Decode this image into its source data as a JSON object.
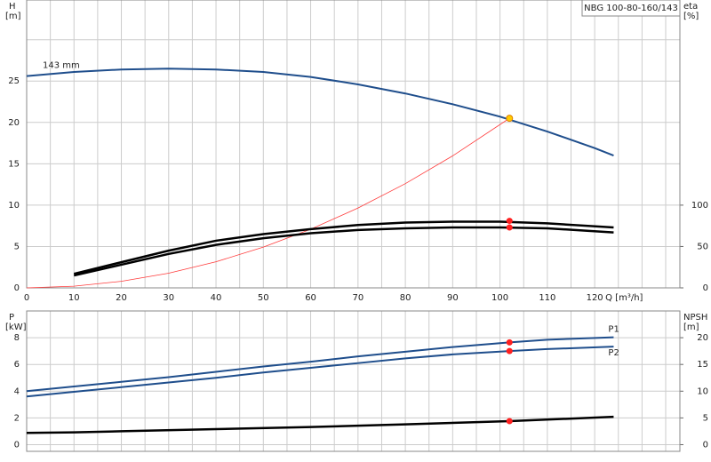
{
  "chart_data": [
    {
      "type": "line",
      "title": "NBG 100-80-160/143",
      "ylabel": "H",
      "yunit": "[m]",
      "y2label": "eta",
      "y2unit": "[%]",
      "xlabel": "Q [m³/h]",
      "xlim": [
        0,
        138
      ],
      "xticks": [
        0,
        10,
        20,
        30,
        40,
        50,
        60,
        70,
        80,
        90,
        100,
        110,
        120
      ],
      "xgrid": [
        5,
        15,
        25,
        35,
        45,
        55,
        65,
        75,
        85,
        95,
        105,
        115,
        125,
        130,
        135
      ],
      "ylim": [
        0,
        34.8
      ],
      "yticks": [
        0,
        5,
        10,
        15,
        20,
        25
      ],
      "ygrid": [
        30
      ],
      "y2lim": [
        0,
        348
      ],
      "y2ticks": [
        0,
        50,
        100
      ],
      "grid": true,
      "series": [
        {
          "name": "143 mm",
          "color": "#1f4e8c",
          "axis": "y",
          "x": [
            0,
            10,
            20,
            30,
            40,
            50,
            60,
            70,
            80,
            90,
            100,
            110,
            120,
            124
          ],
          "values": [
            25.6,
            26.1,
            26.4,
            26.5,
            26.4,
            26.1,
            25.5,
            24.6,
            23.5,
            22.2,
            20.7,
            18.9,
            16.9,
            16.0
          ]
        },
        {
          "color": "#ff3b3b",
          "axis": "y",
          "x": [
            0,
            10,
            20,
            30,
            40,
            50,
            60,
            70,
            80,
            90,
            102
          ],
          "values": [
            0,
            0.2,
            0.79,
            1.77,
            3.15,
            4.93,
            7.09,
            9.65,
            12.6,
            15.96,
            20.5
          ]
        },
        {
          "color": "#000000",
          "axis": "y2",
          "x": [
            10,
            20,
            30,
            40,
            50,
            60,
            70,
            80,
            90,
            100,
            110,
            124
          ],
          "values": [
            17,
            31,
            45,
            57,
            65,
            71,
            76,
            79,
            80,
            80,
            78,
            73
          ]
        },
        {
          "color": "#000000",
          "axis": "y2",
          "x": [
            10,
            20,
            30,
            40,
            50,
            60,
            70,
            80,
            90,
            100,
            110,
            124
          ],
          "values": [
            15,
            28,
            41,
            52,
            60,
            66,
            70,
            72,
            73,
            73,
            72,
            67
          ]
        }
      ],
      "markers": [
        {
          "x": 102,
          "y": 20.5,
          "axis": "y",
          "color": "#ffcc00"
        },
        {
          "x": 102,
          "y": 81,
          "axis": "y2",
          "color": "#ff2020"
        },
        {
          "x": 102,
          "y": 73,
          "axis": "y2",
          "color": "#ff2020"
        }
      ]
    },
    {
      "type": "line",
      "ylabel": "P",
      "yunit": "[kW]",
      "y2label": "NPSH",
      "y2unit": "[m]",
      "xlim": [
        0,
        138
      ],
      "xgrid": [
        0,
        5,
        10,
        15,
        20,
        25,
        30,
        35,
        40,
        45,
        50,
        55,
        60,
        65,
        70,
        75,
        80,
        85,
        90,
        95,
        100,
        105,
        110,
        115,
        120,
        125,
        130,
        135
      ],
      "ylim": [
        -0.5,
        10
      ],
      "yticks": [
        0,
        2,
        4,
        6,
        8
      ],
      "y2lim": [
        -1.25,
        25
      ],
      "y2ticks": [
        0,
        5,
        10,
        15,
        20
      ],
      "grid": true,
      "series": [
        {
          "name": "P1",
          "color": "#1f4e8c",
          "axis": "y",
          "x": [
            0,
            10,
            20,
            30,
            40,
            50,
            60,
            70,
            80,
            90,
            102,
            110,
            124
          ],
          "values": [
            4.0,
            4.35,
            4.7,
            5.05,
            5.45,
            5.85,
            6.2,
            6.6,
            6.95,
            7.3,
            7.65,
            7.85,
            8.03
          ]
        },
        {
          "name": "P2",
          "color": "#1f4e8c",
          "axis": "y",
          "x": [
            0,
            10,
            20,
            30,
            40,
            50,
            60,
            70,
            80,
            90,
            102,
            110,
            124
          ],
          "values": [
            3.6,
            3.95,
            4.3,
            4.65,
            5.0,
            5.4,
            5.75,
            6.1,
            6.45,
            6.75,
            7.0,
            7.15,
            7.33
          ]
        },
        {
          "color": "#000000",
          "axis": "y2",
          "x": [
            0,
            10,
            20,
            40,
            60,
            80,
            102,
            124
          ],
          "values": [
            2.2,
            2.3,
            2.5,
            2.9,
            3.3,
            3.8,
            4.4,
            5.2
          ]
        }
      ],
      "markers": [
        {
          "x": 102,
          "y": 7.65,
          "axis": "y",
          "color": "#ff2020"
        },
        {
          "x": 102,
          "y": 7.0,
          "axis": "y",
          "color": "#ff2020"
        },
        {
          "x": 102,
          "y": 4.4,
          "axis": "y2",
          "color": "#ff2020"
        }
      ]
    }
  ]
}
